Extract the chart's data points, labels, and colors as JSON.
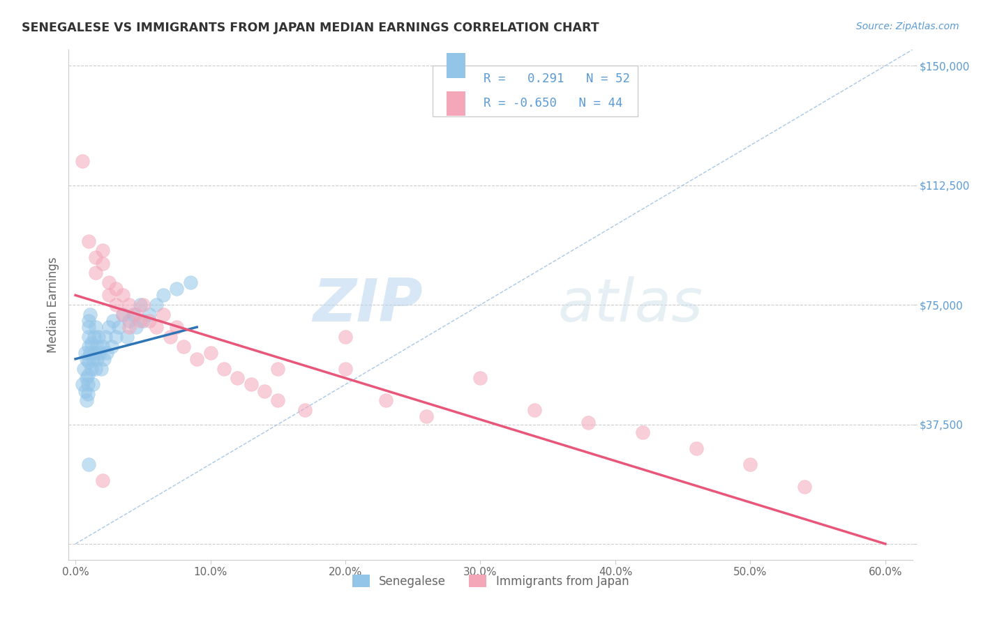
{
  "title": "SENEGALESE VS IMMIGRANTS FROM JAPAN MEDIAN EARNINGS CORRELATION CHART",
  "source": "Source: ZipAtlas.com",
  "ylabel": "Median Earnings",
  "xlim": [
    -0.005,
    0.62
  ],
  "ylim": [
    -5000,
    155000
  ],
  "yticks": [
    0,
    37500,
    75000,
    112500,
    150000
  ],
  "ytick_labels": [
    "",
    "$37,500",
    "$75,000",
    "$112,500",
    "$150,000"
  ],
  "xticks": [
    0.0,
    0.1,
    0.2,
    0.3,
    0.4,
    0.5,
    0.6
  ],
  "xtick_labels": [
    "0.0%",
    "10.0%",
    "20.0%",
    "30.0%",
    "40.0%",
    "50.0%",
    "60.0%"
  ],
  "background_color": "#ffffff",
  "grid_color": "#cccccc",
  "title_color": "#333333",
  "axis_label_color": "#666666",
  "ytick_color": "#5b9bd5",
  "xtick_color": "#666666",
  "blue_color": "#93c5e8",
  "pink_color": "#f4a7b9",
  "blue_line_color": "#2e75b6",
  "pink_line_color": "#e8567a",
  "diag_line_color": "#a8c8e8",
  "legend_R1": "0.291",
  "legend_N1": "52",
  "legend_R2": "-0.650",
  "legend_N2": "44",
  "legend_label1": "Senegalese",
  "legend_label2": "Immigrants from Japan",
  "watermark_zip": "ZIP",
  "watermark_atlas": "atlas",
  "senegalese_x": [
    0.005,
    0.006,
    0.007,
    0.007,
    0.008,
    0.008,
    0.008,
    0.009,
    0.009,
    0.009,
    0.01,
    0.01,
    0.01,
    0.01,
    0.01,
    0.011,
    0.011,
    0.012,
    0.012,
    0.013,
    0.013,
    0.014,
    0.014,
    0.015,
    0.015,
    0.016,
    0.016,
    0.017,
    0.018,
    0.019,
    0.02,
    0.021,
    0.022,
    0.023,
    0.025,
    0.027,
    0.028,
    0.03,
    0.032,
    0.035,
    0.038,
    0.04,
    0.043,
    0.045,
    0.048,
    0.05,
    0.055,
    0.06,
    0.065,
    0.075,
    0.085,
    0.01
  ],
  "senegalese_y": [
    50000,
    55000,
    48000,
    60000,
    52000,
    45000,
    58000,
    50000,
    53000,
    47000,
    62000,
    57000,
    65000,
    70000,
    68000,
    60000,
    72000,
    55000,
    63000,
    50000,
    58000,
    65000,
    60000,
    68000,
    55000,
    62000,
    58000,
    65000,
    60000,
    55000,
    62000,
    58000,
    65000,
    60000,
    68000,
    62000,
    70000,
    65000,
    68000,
    72000,
    65000,
    70000,
    72000,
    68000,
    75000,
    70000,
    72000,
    75000,
    78000,
    80000,
    82000,
    25000
  ],
  "japan_x": [
    0.005,
    0.01,
    0.015,
    0.015,
    0.02,
    0.02,
    0.025,
    0.025,
    0.03,
    0.03,
    0.035,
    0.035,
    0.04,
    0.04,
    0.045,
    0.048,
    0.05,
    0.055,
    0.06,
    0.065,
    0.07,
    0.075,
    0.08,
    0.09,
    0.1,
    0.11,
    0.12,
    0.13,
    0.14,
    0.15,
    0.17,
    0.2,
    0.23,
    0.26,
    0.3,
    0.34,
    0.38,
    0.42,
    0.46,
    0.5,
    0.54,
    0.2,
    0.15,
    0.02
  ],
  "japan_y": [
    120000,
    95000,
    90000,
    85000,
    88000,
    92000,
    78000,
    82000,
    80000,
    75000,
    78000,
    72000,
    75000,
    68000,
    72000,
    70000,
    75000,
    70000,
    68000,
    72000,
    65000,
    68000,
    62000,
    58000,
    60000,
    55000,
    52000,
    50000,
    48000,
    45000,
    42000,
    55000,
    45000,
    40000,
    52000,
    42000,
    38000,
    35000,
    30000,
    25000,
    18000,
    65000,
    55000,
    20000
  ]
}
